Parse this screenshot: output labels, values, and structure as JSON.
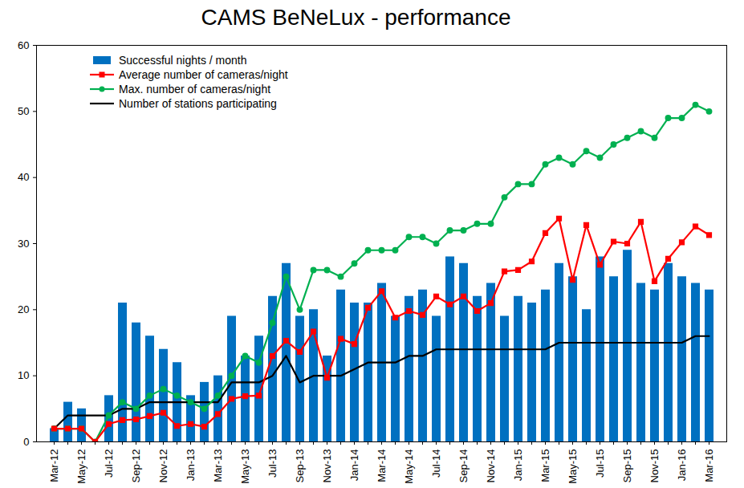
{
  "chart_data": {
    "type": "bar",
    "title": "CAMS BeNeLux  - performance",
    "categories": [
      "Mar-12",
      null,
      "May-12",
      null,
      "Jul-12",
      null,
      "Sep-12",
      null,
      "Nov-12",
      null,
      "Jan-13",
      null,
      "Mar-13",
      null,
      "May-13",
      null,
      "Jul-13",
      null,
      "Sep-13",
      null,
      "Nov-13",
      null,
      "Jan-14",
      null,
      "Mar-14",
      null,
      "May-14",
      null,
      "Jul-14",
      null,
      "Sep-14",
      null,
      "Nov-14",
      null,
      "Jan-15",
      null,
      "Mar-15",
      null,
      "May-15",
      null,
      "Jul-15",
      null,
      "Sep-15",
      null,
      "Nov-15",
      null,
      "Jan-16",
      null,
      "Mar-16"
    ],
    "series": [
      {
        "name": "Successful nights / month",
        "type": "bar",
        "color": "#0070c0",
        "values": [
          2,
          6,
          5,
          0,
          7,
          21,
          18,
          16,
          14,
          12,
          7,
          9,
          10,
          19,
          13,
          16,
          22,
          27,
          19,
          20,
          13,
          23,
          21,
          21,
          24,
          19,
          22,
          23,
          19,
          28,
          27,
          22,
          24,
          19,
          22,
          21,
          23,
          27,
          25,
          20,
          28,
          25,
          29,
          24,
          23,
          27,
          25,
          24,
          23
        ]
      },
      {
        "name": "Average number of cameras/night",
        "type": "line",
        "marker": "square",
        "color": "#ff0000",
        "values": [
          2,
          2,
          2,
          0,
          2.7,
          3.3,
          3.4,
          3.9,
          4.4,
          2.4,
          2.7,
          2.3,
          4.2,
          6.5,
          6.9,
          7,
          13,
          15.3,
          13.6,
          16.7,
          9.7,
          15.6,
          14.8,
          20.3,
          22.8,
          18.8,
          19.8,
          19.2,
          22,
          20.8,
          22,
          19.8,
          21,
          25.8,
          26,
          27.3,
          31.6,
          33.8,
          24.5,
          32.8,
          26.8,
          30.3,
          30,
          33.3,
          24.3,
          27.7,
          30.2,
          32.6,
          31.3
        ]
      },
      {
        "name": "Max. number of cameras/night",
        "type": "line",
        "marker": "circle",
        "color": "#00b050",
        "values": [
          2,
          2,
          2,
          0,
          4,
          6,
          5,
          7,
          8,
          7,
          6,
          5,
          7,
          10,
          13,
          12,
          18,
          25,
          20,
          26,
          26,
          25,
          27,
          29,
          29,
          29,
          31,
          31,
          30,
          32,
          32,
          33,
          33,
          37,
          39,
          39,
          42,
          43,
          42,
          44,
          43,
          45,
          46,
          47,
          46,
          49,
          49,
          51,
          50
        ]
      },
      {
        "name": "Number of stations participating",
        "type": "line",
        "color": "#000000",
        "values": [
          2,
          4,
          4,
          4,
          4,
          5,
          5,
          6,
          6,
          6,
          6,
          6,
          6,
          9,
          9,
          9,
          10,
          13,
          9,
          10,
          10,
          10,
          11,
          12,
          12,
          12,
          13,
          13,
          14,
          14,
          14,
          14,
          14,
          14,
          14,
          14,
          14,
          15,
          15,
          15,
          15,
          15,
          15,
          15,
          15,
          15,
          15,
          16,
          16
        ]
      }
    ],
    "ylim": [
      0,
      60
    ],
    "yticks": [
      0,
      10,
      20,
      30,
      40,
      50,
      60
    ],
    "grid": false,
    "legend": "top-left"
  }
}
